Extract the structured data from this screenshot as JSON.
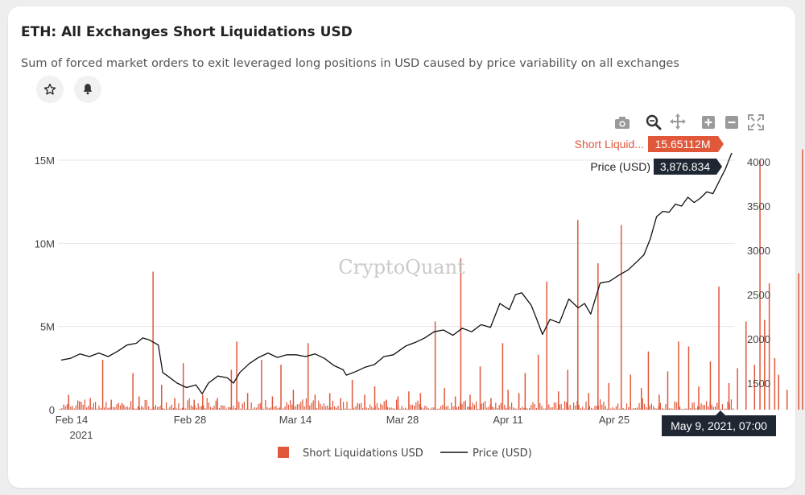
{
  "header": {
    "title": "ETH: All Exchanges Short Liquidations USD",
    "subtitle": "Sum of forced market orders to exit leveraged long positions in USD caused by price variability on all exchanges"
  },
  "actions": {
    "favorite_icon": "star-icon",
    "alert_icon": "bell-icon"
  },
  "toolbar": {
    "icons": [
      "camera-icon",
      "zoom-icon",
      "pan-icon",
      "zoom-in-icon",
      "zoom-out-icon",
      "autoscale-icon"
    ]
  },
  "watermark": "CryptoQuant",
  "colors": {
    "bars": "#e0573a",
    "line": "#111111",
    "tooltip_dark": "#1f2733",
    "tooltip_red": "#e0573a",
    "grid": "#e6e6e6"
  },
  "tooltips": {
    "bar_label": "Short Liquid...",
    "bar_value": "15.65112M",
    "price_label": "Price (USD)",
    "price_value": "3,876.834",
    "date": "May 9, 2021, 07:00"
  },
  "chart_data": {
    "type": "bar+line",
    "title": "ETH: All Exchanges Short Liquidations USD",
    "x_ticks": [
      "Feb 14",
      "Feb 28",
      "Mar 14",
      "Mar 28",
      "Apr 11",
      "Apr 25"
    ],
    "x_tick_year": "2021",
    "x_range_days": [
      0,
      97
    ],
    "y_left": {
      "ticks": [
        "0",
        "5M",
        "10M",
        "15M"
      ],
      "tick_values": [
        0,
        5,
        10,
        15
      ],
      "range": [
        0,
        16.5
      ],
      "unit": "M USD"
    },
    "y_right": {
      "ticks": [
        "1500",
        "2000",
        "2500",
        "3000",
        "3500",
        "4000"
      ],
      "tick_values": [
        1500,
        2000,
        2500,
        3000,
        3500,
        4000
      ],
      "range": [
        1200,
        4300
      ]
    },
    "series": [
      {
        "name": "Short Liquidations USD",
        "type": "bar",
        "axis": "left",
        "unit": "M USD",
        "points": [
          [
            0.6,
            0.9
          ],
          [
            2.0,
            0.5
          ],
          [
            3.4,
            0.7
          ],
          [
            5.0,
            3.0
          ],
          [
            6.1,
            0.6
          ],
          [
            7.5,
            0.4
          ],
          [
            8.9,
            2.2
          ],
          [
            9.7,
            0.8
          ],
          [
            11.5,
            8.3
          ],
          [
            12.6,
            1.5
          ],
          [
            14.3,
            0.7
          ],
          [
            15.4,
            2.8
          ],
          [
            16.8,
            0.6
          ],
          [
            17.9,
            0.9
          ],
          [
            19.8,
            0.7
          ],
          [
            21.6,
            2.4
          ],
          [
            22.3,
            4.1
          ],
          [
            23.7,
            1.0
          ],
          [
            25.5,
            3.0
          ],
          [
            26.9,
            0.8
          ],
          [
            28.0,
            2.7
          ],
          [
            29.6,
            1.2
          ],
          [
            31.5,
            4.0
          ],
          [
            32.4,
            0.9
          ],
          [
            34.3,
            1.0
          ],
          [
            35.7,
            0.7
          ],
          [
            37.2,
            1.8
          ],
          [
            38.8,
            0.9
          ],
          [
            40.1,
            1.4
          ],
          [
            41.6,
            0.6
          ],
          [
            43.1,
            0.8
          ],
          [
            44.5,
            1.1
          ],
          [
            46.0,
            1.0
          ],
          [
            47.9,
            5.3
          ],
          [
            49.1,
            1.3
          ],
          [
            50.5,
            0.8
          ],
          [
            51.2,
            9.1
          ],
          [
            52.4,
            0.9
          ],
          [
            53.7,
            2.6
          ],
          [
            55.1,
            0.7
          ],
          [
            56.6,
            4.0
          ],
          [
            57.3,
            1.2
          ],
          [
            58.7,
            1.0
          ],
          [
            59.5,
            2.2
          ],
          [
            61.2,
            3.3
          ],
          [
            62.3,
            7.7
          ],
          [
            63.8,
            1.1
          ],
          [
            65.0,
            2.4
          ],
          [
            66.3,
            11.4
          ],
          [
            67.7,
            1.0
          ],
          [
            68.9,
            8.8
          ],
          [
            70.3,
            1.6
          ],
          [
            71.9,
            11.1
          ],
          [
            73.1,
            2.1
          ],
          [
            74.5,
            1.3
          ],
          [
            75.4,
            3.5
          ],
          [
            76.8,
            0.9
          ],
          [
            77.9,
            2.3
          ],
          [
            79.3,
            4.1
          ],
          [
            80.6,
            3.8
          ],
          [
            81.9,
            1.4
          ],
          [
            83.4,
            2.9
          ],
          [
            84.5,
            7.4
          ],
          [
            85.8,
            1.6
          ],
          [
            86.9,
            2.5
          ],
          [
            88.0,
            5.3
          ],
          [
            89.1,
            2.7
          ],
          [
            89.8,
            15.0
          ],
          [
            90.4,
            5.4
          ],
          [
            91.0,
            7.6
          ],
          [
            91.7,
            3.1
          ],
          [
            92.2,
            2.1
          ],
          [
            93.3,
            1.2
          ],
          [
            94.8,
            8.2
          ],
          [
            95.3,
            15.65
          ],
          [
            95.9,
            2.6
          ],
          [
            96.5,
            5.6
          ]
        ]
      },
      {
        "name": "Price (USD)",
        "type": "line",
        "axis": "right",
        "points": [
          [
            0,
            1760
          ],
          [
            1.5,
            1780
          ],
          [
            3,
            1830
          ],
          [
            4.5,
            1800
          ],
          [
            6,
            1840
          ],
          [
            7.5,
            1800
          ],
          [
            9,
            1860
          ],
          [
            10.5,
            1930
          ],
          [
            12,
            1950
          ],
          [
            13,
            2010
          ],
          [
            14,
            1990
          ],
          [
            15.5,
            1930
          ],
          [
            16.2,
            1620
          ],
          [
            17,
            1580
          ],
          [
            18.5,
            1500
          ],
          [
            20,
            1450
          ],
          [
            21.5,
            1480
          ],
          [
            22.5,
            1380
          ],
          [
            23.5,
            1500
          ],
          [
            25,
            1580
          ],
          [
            26.5,
            1560
          ],
          [
            27.5,
            1500
          ],
          [
            28.5,
            1620
          ],
          [
            30,
            1720
          ],
          [
            31.5,
            1790
          ],
          [
            33,
            1840
          ],
          [
            34.5,
            1790
          ],
          [
            36,
            1820
          ],
          [
            37.5,
            1820
          ],
          [
            39,
            1800
          ],
          [
            40.5,
            1830
          ],
          [
            42,
            1780
          ],
          [
            43.5,
            1700
          ],
          [
            45,
            1650
          ],
          [
            45.5,
            1590
          ],
          [
            47,
            1630
          ],
          [
            48.5,
            1680
          ],
          [
            50,
            1710
          ],
          [
            51.5,
            1800
          ],
          [
            53,
            1820
          ],
          [
            55,
            1920
          ],
          [
            56.5,
            1960
          ],
          [
            58,
            2010
          ],
          [
            59.5,
            2080
          ],
          [
            61,
            2100
          ],
          [
            62.5,
            2040
          ],
          [
            64,
            2120
          ],
          [
            65.5,
            2080
          ],
          [
            67,
            2160
          ],
          [
            68.5,
            2130
          ],
          [
            70,
            2400
          ],
          [
            71.5,
            2330
          ],
          [
            72.5,
            2500
          ],
          [
            73.5,
            2520
          ],
          [
            75,
            2380
          ],
          [
            76,
            2200
          ],
          [
            76.8,
            2050
          ],
          [
            78,
            2220
          ],
          [
            79.5,
            2180
          ],
          [
            81,
            2450
          ],
          [
            82.5,
            2350
          ],
          [
            83.5,
            2400
          ],
          [
            84.5,
            2280
          ],
          [
            86,
            2630
          ],
          [
            87.5,
            2650
          ],
          [
            89,
            2720
          ],
          [
            90.5,
            2780
          ],
          [
            92,
            2880
          ],
          [
            93,
            2950
          ],
          [
            94,
            3130
          ],
          [
            95,
            3380
          ],
          [
            96,
            3440
          ],
          [
            97,
            3430
          ],
          [
            98,
            3520
          ],
          [
            99,
            3500
          ],
          [
            100,
            3600
          ],
          [
            101,
            3540
          ],
          [
            102,
            3590
          ],
          [
            103,
            3660
          ],
          [
            104,
            3640
          ],
          [
            105,
            3780
          ],
          [
            106,
            3920
          ],
          [
            107,
            4100
          ]
        ]
      }
    ],
    "legend": [
      "Short Liquidations USD",
      "Price (USD)"
    ],
    "legend_position": "bottom-center",
    "grid": true
  }
}
